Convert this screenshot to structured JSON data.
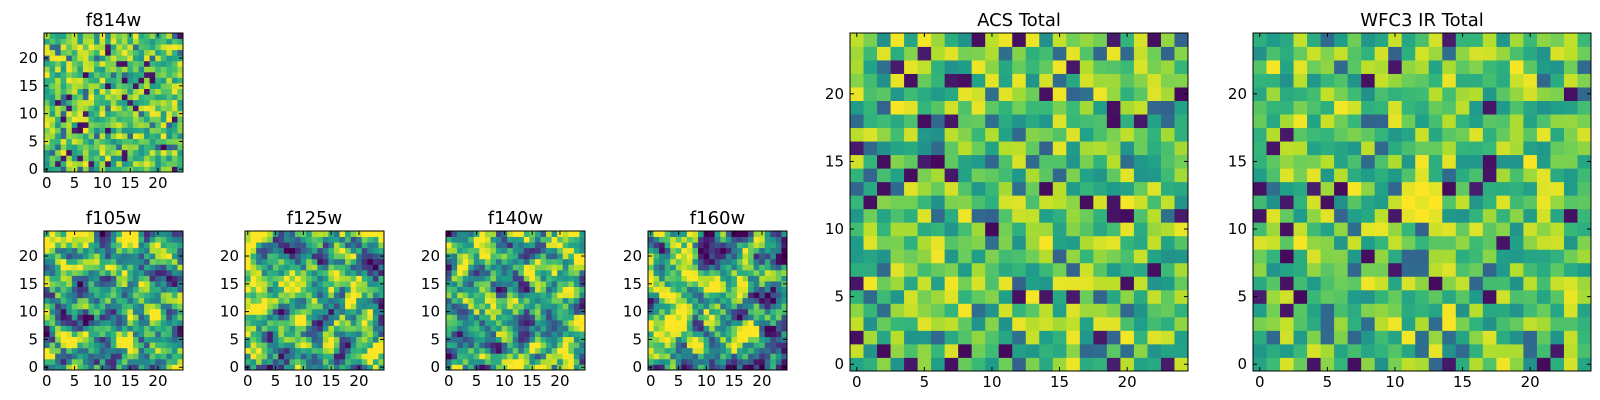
{
  "chart_data": [
    {
      "type": "heatmap",
      "title": "f814w",
      "colormap": "viridis",
      "grid_size": 24,
      "xlim": [
        0,
        24
      ],
      "ylim": [
        0,
        24
      ],
      "xticks": [
        0,
        5,
        10,
        15,
        20
      ],
      "xtick_labels": [
        "0",
        "5",
        "10",
        "15",
        "20"
      ],
      "yticks": [
        0,
        5,
        10,
        15,
        20
      ],
      "ytick_labels": [
        "0",
        "5",
        "10",
        "15",
        "20"
      ],
      "texture": "pixel",
      "seed": 11
    },
    {
      "type": "heatmap",
      "title": "f105w",
      "colormap": "viridis",
      "grid_size": 24,
      "xlim": [
        0,
        24
      ],
      "ylim": [
        0,
        24
      ],
      "xticks": [
        0,
        5,
        10,
        15,
        20
      ],
      "xtick_labels": [
        "0",
        "5",
        "10",
        "15",
        "20"
      ],
      "yticks": [
        0,
        5,
        10,
        15,
        20
      ],
      "ytick_labels": [
        "0",
        "5",
        "10",
        "15",
        "20"
      ],
      "texture": "smooth",
      "seed": 23
    },
    {
      "type": "heatmap",
      "title": "f125w",
      "colormap": "viridis",
      "grid_size": 24,
      "xlim": [
        0,
        24
      ],
      "ylim": [
        0,
        24
      ],
      "xticks": [
        0,
        5,
        10,
        15,
        20
      ],
      "xtick_labels": [
        "0",
        "5",
        "10",
        "15",
        "20"
      ],
      "yticks": [
        0,
        5,
        10,
        15,
        20
      ],
      "ytick_labels": [
        "0",
        "5",
        "10",
        "15",
        "20"
      ],
      "texture": "smooth",
      "seed": 37
    },
    {
      "type": "heatmap",
      "title": "f140w",
      "colormap": "viridis",
      "grid_size": 24,
      "xlim": [
        0,
        24
      ],
      "ylim": [
        0,
        24
      ],
      "xticks": [
        0,
        5,
        10,
        15,
        20
      ],
      "xtick_labels": [
        "0",
        "5",
        "10",
        "15",
        "20"
      ],
      "yticks": [
        0,
        5,
        10,
        15,
        20
      ],
      "ytick_labels": [
        "0",
        "5",
        "10",
        "15",
        "20"
      ],
      "texture": "smooth",
      "seed": 41
    },
    {
      "type": "heatmap",
      "title": "f160w",
      "colormap": "viridis",
      "grid_size": 24,
      "xlim": [
        0,
        24
      ],
      "ylim": [
        0,
        24
      ],
      "xticks": [
        0,
        5,
        10,
        15,
        20
      ],
      "xtick_labels": [
        "0",
        "5",
        "10",
        "15",
        "20"
      ],
      "yticks": [
        0,
        5,
        10,
        15,
        20
      ],
      "ytick_labels": [
        "0",
        "5",
        "10",
        "15",
        "20"
      ],
      "texture": "smooth",
      "seed": 53
    },
    {
      "type": "heatmap",
      "title": "ACS Total",
      "colormap": "viridis",
      "grid_size": 24,
      "xlim": [
        0,
        24
      ],
      "ylim": [
        0,
        24
      ],
      "xticks": [
        0,
        5,
        10,
        15,
        20
      ],
      "xtick_labels": [
        "0",
        "5",
        "10",
        "15",
        "20"
      ],
      "yticks": [
        0,
        5,
        10,
        15,
        20
      ],
      "ytick_labels": [
        "0",
        "5",
        "10",
        "15",
        "20"
      ],
      "texture": "pixel",
      "seed": 67
    },
    {
      "type": "heatmap",
      "title": "WFC3 IR Total",
      "colormap": "viridis",
      "grid_size": 24,
      "xlim": [
        0,
        24
      ],
      "ylim": [
        0,
        24
      ],
      "xticks": [
        0,
        5,
        10,
        15,
        20
      ],
      "xtick_labels": [
        "0",
        "5",
        "10",
        "15",
        "20"
      ],
      "yticks": [
        0,
        5,
        10,
        15,
        20
      ],
      "ytick_labels": [
        "0",
        "5",
        "10",
        "15",
        "20"
      ],
      "texture": "pixel",
      "seed": 79,
      "hotspot": [
        12,
        12
      ]
    }
  ]
}
